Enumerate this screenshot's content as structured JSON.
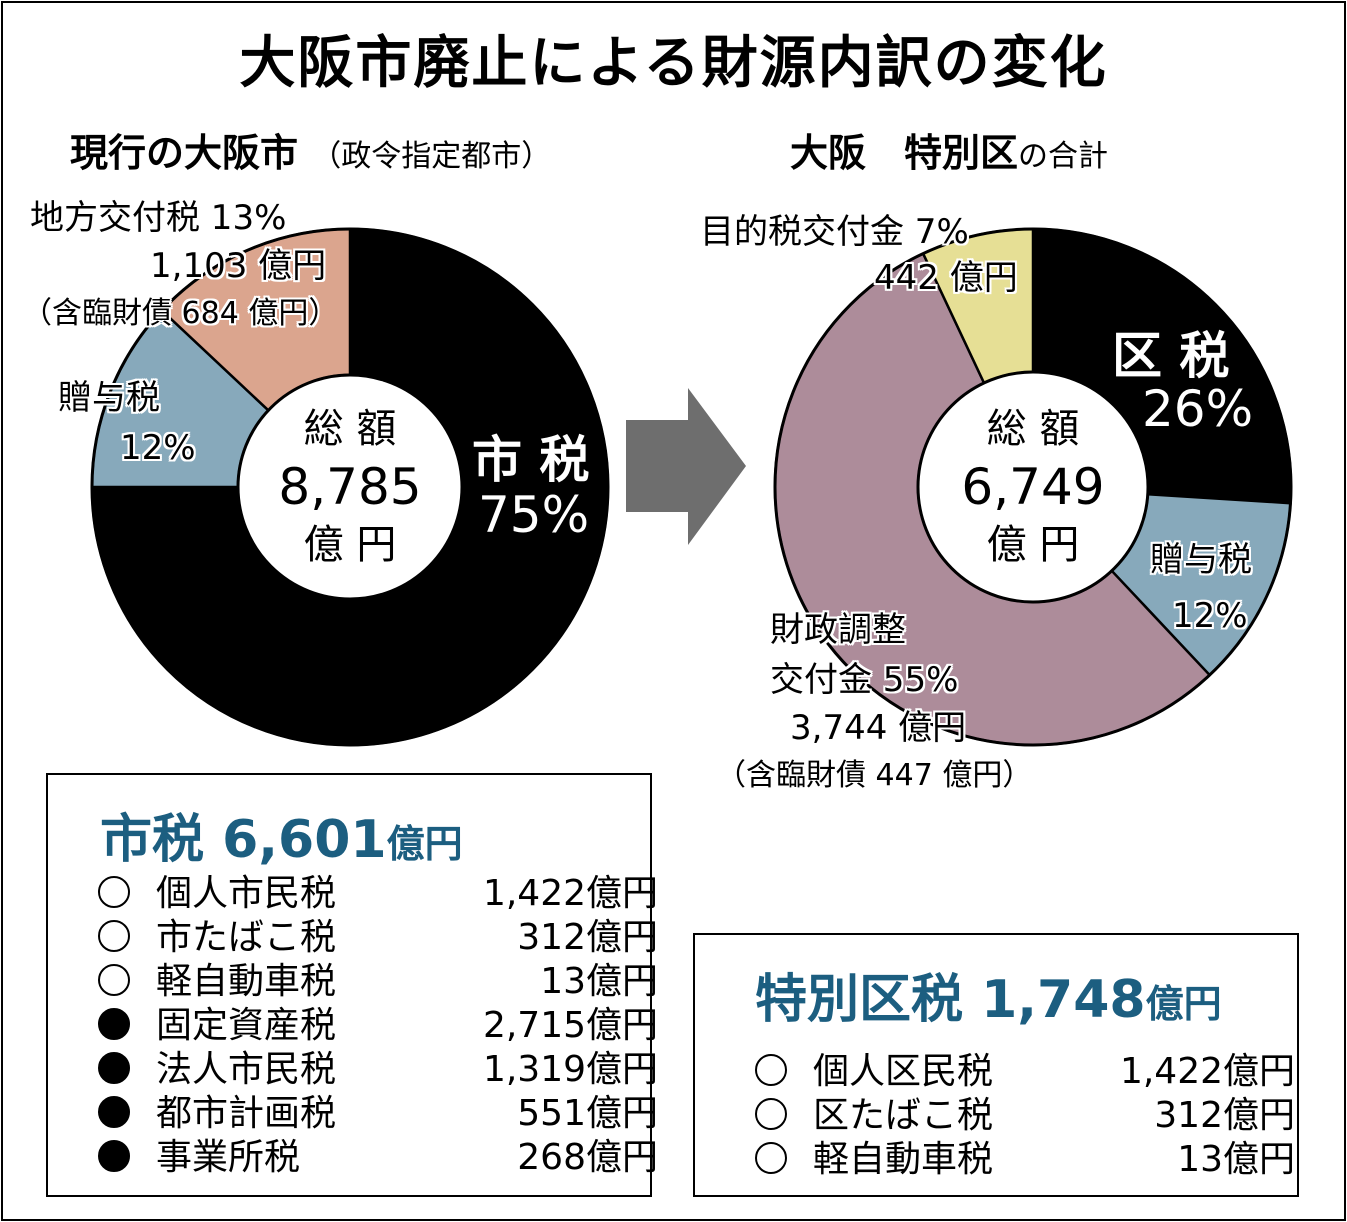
{
  "title": "大阪市廃止による財源内訳の変化",
  "colors": {
    "black": "#000000",
    "blue": "#87a9bb",
    "salmon": "#dba58e",
    "purple": "#ad8c9a",
    "yellow": "#e6df95",
    "arrow": "#6e6e6e",
    "accent": "#1c5e80"
  },
  "chart_data": [
    {
      "type": "pie",
      "title": "現行の大阪市",
      "subtitle": "（政令指定都市）",
      "center": {
        "label": "総 額",
        "value": "8,785",
        "unit": "億 円"
      },
      "slices": [
        {
          "name": "市税",
          "percent": 75,
          "color": "#000000",
          "label": "市 税",
          "pct_label": "75%"
        },
        {
          "name": "贈与税",
          "percent": 12,
          "color": "#87a9bb",
          "label": "贈与税",
          "pct_label": "12%"
        },
        {
          "name": "地方交付税",
          "percent": 13,
          "color": "#dba58e",
          "label": "地方交付税 13%",
          "amount": "1,103 億円",
          "note": "（含臨財債 684 億円）"
        }
      ]
    },
    {
      "type": "pie",
      "title": "大阪　特別区",
      "subtitle": "の合計",
      "center": {
        "label": "総 額",
        "value": "6,749",
        "unit": "億 円"
      },
      "slices": [
        {
          "name": "区税",
          "percent": 26,
          "color": "#000000",
          "label": "区 税",
          "pct_label": "26%"
        },
        {
          "name": "贈与税",
          "percent": 12,
          "color": "#87a9bb",
          "label": "贈与税",
          "pct_label": "12%"
        },
        {
          "name": "財政調整交付金",
          "percent": 55,
          "color": "#ad8c9a",
          "label": "財政調整",
          "label2": "交付金 55%",
          "amount": "3,744 億円",
          "note": "（含臨財債 447 億円）"
        },
        {
          "name": "目的税交付金",
          "percent": 7,
          "color": "#e6df95",
          "label": "目的税交付金 7%",
          "amount": "442 億円"
        }
      ]
    }
  ],
  "city_tax": {
    "title": "市税 6,601",
    "unit": "億円",
    "items": [
      {
        "mark": "open",
        "name": "個人市民税",
        "value": "1,422億円"
      },
      {
        "mark": "open",
        "name": "市たばこ税",
        "value": "312億円"
      },
      {
        "mark": "open",
        "name": "軽自動車税",
        "value": "13億円"
      },
      {
        "mark": "filled",
        "name": "固定資産税",
        "value": "2,715億円"
      },
      {
        "mark": "filled",
        "name": "法人市民税",
        "value": "1,319億円"
      },
      {
        "mark": "filled",
        "name": "都市計画税",
        "value": "551億円"
      },
      {
        "mark": "filled",
        "name": "事業所税",
        "value": "268億円"
      }
    ]
  },
  "ward_tax": {
    "title": "特別区税 1,748",
    "unit": "億円",
    "items": [
      {
        "mark": "open",
        "name": "個人区民税",
        "value": "1,422億円"
      },
      {
        "mark": "open",
        "name": "区たばこ税",
        "value": "312億円"
      },
      {
        "mark": "open",
        "name": "軽自動車税",
        "value": "13億円"
      }
    ]
  }
}
